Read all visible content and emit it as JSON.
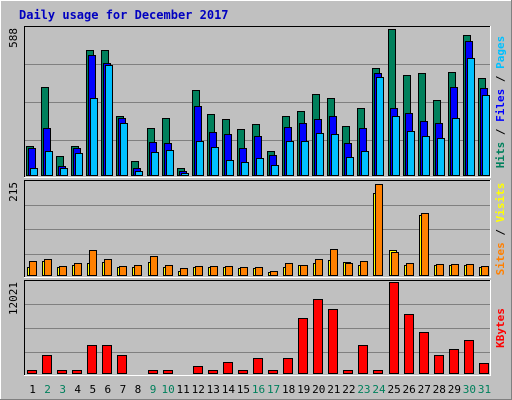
{
  "title": "Daily usage for December 2017",
  "colors": {
    "background": "#c0c0c0",
    "border_dark": "#808080",
    "border_light": "#ffffff",
    "grid": "#808080",
    "title": "#0000c0",
    "hits": "#00805c",
    "files": "#0000ff",
    "pages": "#00c0ff",
    "visits": "#ffff00",
    "sites": "#ff8000",
    "kbytes": "#ff0000",
    "weekend_day": "#00805c",
    "weekday": "#000000"
  },
  "chart_data": [
    {
      "type": "bar",
      "name": "hits-files-pages",
      "max_label": "588",
      "ylim": [
        0,
        588
      ],
      "legend": [
        "Hits",
        "Files",
        "Pages"
      ],
      "legend_colors": [
        "#00805c",
        "#0000ff",
        "#00c0ff"
      ],
      "x": [
        1,
        2,
        3,
        4,
        5,
        6,
        7,
        8,
        9,
        10,
        11,
        12,
        13,
        14,
        15,
        16,
        17,
        18,
        19,
        20,
        21,
        22,
        23,
        24,
        25,
        26,
        27,
        28,
        29,
        30,
        31
      ],
      "series": [
        {
          "name": "Hits",
          "values": [
            120,
            355,
            80,
            120,
            500,
            500,
            240,
            60,
            190,
            230,
            30,
            340,
            245,
            225,
            185,
            205,
            100,
            240,
            260,
            325,
            310,
            200,
            270,
            430,
            585,
            400,
            410,
            300,
            415,
            560,
            390
          ]
        },
        {
          "name": "Files",
          "values": [
            110,
            190,
            40,
            110,
            480,
            450,
            230,
            30,
            135,
            130,
            20,
            280,
            175,
            165,
            110,
            160,
            85,
            195,
            210,
            225,
            240,
            130,
            190,
            410,
            270,
            250,
            220,
            210,
            355,
            535,
            350
          ]
        },
        {
          "name": "Pages",
          "values": [
            30,
            100,
            30,
            90,
            310,
            440,
            210,
            20,
            95,
            105,
            10,
            140,
            115,
            65,
            55,
            70,
            45,
            140,
            140,
            170,
            165,
            75,
            100,
            395,
            240,
            180,
            160,
            150,
            230,
            470,
            320
          ]
        }
      ]
    },
    {
      "type": "bar",
      "name": "visits-sites",
      "max_label": "215",
      "ylim": [
        0,
        215
      ],
      "legend": [
        "Sites",
        "Visits"
      ],
      "legend_colors": [
        "#ff8000",
        "#ffff00"
      ],
      "x": [
        1,
        2,
        3,
        4,
        5,
        6,
        7,
        8,
        9,
        10,
        11,
        12,
        13,
        14,
        15,
        16,
        17,
        18,
        19,
        20,
        21,
        22,
        23,
        24,
        25,
        26,
        27,
        28,
        29,
        30,
        31
      ],
      "series": [
        {
          "name": "Visits",
          "values": [
            20,
            35,
            20,
            25,
            30,
            32,
            20,
            20,
            32,
            20,
            12,
            20,
            20,
            20,
            18,
            18,
            10,
            20,
            25,
            30,
            36,
            32,
            25,
            190,
            60,
            25,
            140,
            25,
            25,
            25,
            20
          ]
        },
        {
          "name": "Sites",
          "values": [
            35,
            40,
            22,
            30,
            60,
            40,
            22,
            25,
            45,
            25,
            18,
            22,
            22,
            22,
            20,
            20,
            12,
            30,
            25,
            38,
            62,
            30,
            35,
            210,
            55,
            30,
            145,
            28,
            28,
            28,
            22
          ]
        }
      ]
    },
    {
      "type": "bar",
      "name": "kbytes",
      "max_label": "12021",
      "ylim": [
        0,
        12021
      ],
      "legend": [
        "KBytes"
      ],
      "legend_colors": [
        "#ff0000"
      ],
      "x": [
        1,
        2,
        3,
        4,
        5,
        6,
        7,
        8,
        9,
        10,
        11,
        12,
        13,
        14,
        15,
        16,
        17,
        18,
        19,
        20,
        21,
        22,
        23,
        24,
        25,
        26,
        27,
        28,
        29,
        30,
        31
      ],
      "series": [
        {
          "name": "KBytes",
          "values": [
            580,
            2450,
            580,
            580,
            3850,
            3730,
            2450,
            150,
            580,
            580,
            150,
            1070,
            580,
            1510,
            460,
            2070,
            460,
            2060,
            7370,
            9850,
            8450,
            580,
            3850,
            580,
            12000,
            7870,
            5470,
            2500,
            3270,
            4500,
            1500
          ]
        }
      ]
    }
  ],
  "days": [
    {
      "label": "1",
      "weekend": false
    },
    {
      "label": "2",
      "weekend": true
    },
    {
      "label": "3",
      "weekend": true
    },
    {
      "label": "4",
      "weekend": false
    },
    {
      "label": "5",
      "weekend": false
    },
    {
      "label": "6",
      "weekend": false
    },
    {
      "label": "7",
      "weekend": false
    },
    {
      "label": "8",
      "weekend": false
    },
    {
      "label": "9",
      "weekend": true
    },
    {
      "label": "10",
      "weekend": true
    },
    {
      "label": "11",
      "weekend": false
    },
    {
      "label": "12",
      "weekend": false
    },
    {
      "label": "13",
      "weekend": false
    },
    {
      "label": "14",
      "weekend": false
    },
    {
      "label": "15",
      "weekend": false
    },
    {
      "label": "16",
      "weekend": true
    },
    {
      "label": "17",
      "weekend": true
    },
    {
      "label": "18",
      "weekend": false
    },
    {
      "label": "19",
      "weekend": false
    },
    {
      "label": "20",
      "weekend": false
    },
    {
      "label": "21",
      "weekend": false
    },
    {
      "label": "22",
      "weekend": false
    },
    {
      "label": "23",
      "weekend": true
    },
    {
      "label": "24",
      "weekend": true
    },
    {
      "label": "25",
      "weekend": false
    },
    {
      "label": "26",
      "weekend": false
    },
    {
      "label": "27",
      "weekend": false
    },
    {
      "label": "28",
      "weekend": false
    },
    {
      "label": "29",
      "weekend": false
    },
    {
      "label": "30",
      "weekend": true
    },
    {
      "label": "31",
      "weekend": true
    }
  ]
}
